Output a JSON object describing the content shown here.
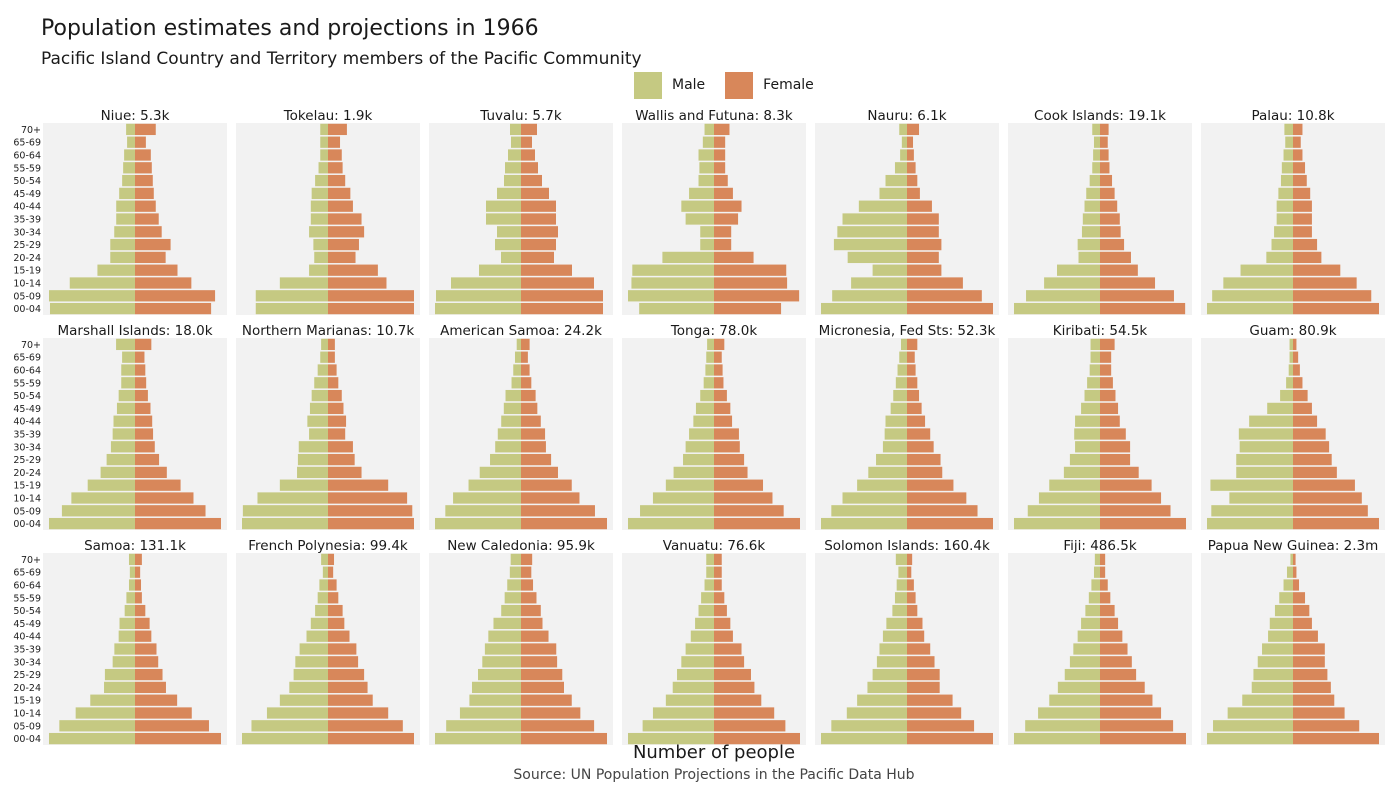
{
  "title": "Population estimates and projections in 1966",
  "subtitle": "Pacific Island Country and Territory members of the Pacific Community",
  "legend": {
    "male_label": "Male",
    "female_label": "Female"
  },
  "colors": {
    "male": "#c5c982",
    "female": "#d8875a",
    "panel_bg": "#f2f2f2"
  },
  "xlabel": "Number of people",
  "caption": "Source: UN Population Projections in the Pacific Data Hub",
  "chart_data": {
    "type": "bar",
    "orientation": "horizontal population pyramid, facets with free x scales",
    "age_groups": [
      "00-04",
      "05-09",
      "10-14",
      "15-19",
      "20-24",
      "25-29",
      "30-34",
      "35-39",
      "40-44",
      "45-49",
      "50-54",
      "55-59",
      "60-64",
      "65-69",
      "70+"
    ],
    "panels": [
      {
        "title": "Niue: 5.3k",
        "male": [
          86,
          87,
          66,
          38,
          25,
          25,
          21,
          19,
          19,
          16,
          13,
          12,
          11,
          8,
          9
        ],
        "female": [
          77,
          81,
          57,
          43,
          31,
          36,
          27,
          24,
          21,
          19,
          18,
          17,
          16,
          11,
          21
        ]
      },
      {
        "title": "Tokelau: 1.9k",
        "male": [
          84,
          84,
          56,
          22,
          16,
          17,
          22,
          20,
          20,
          19,
          15,
          11,
          9,
          9,
          9
        ],
        "female": [
          100,
          100,
          68,
          58,
          32,
          36,
          42,
          39,
          29,
          26,
          20,
          17,
          16,
          14,
          22
        ]
      },
      {
        "title": "Tuvalu: 5.7k",
        "male": [
          86,
          85,
          70,
          42,
          20,
          26,
          24,
          35,
          35,
          24,
          17,
          16,
          13,
          10,
          11
        ],
        "female": [
          82,
          82,
          73,
          51,
          33,
          35,
          37,
          35,
          35,
          28,
          21,
          17,
          14,
          11,
          16
        ]
      },
      {
        "title": "Wallis and Futuna: 8.3k",
        "male": [
          87,
          100,
          96,
          95,
          60,
          16,
          16,
          33,
          38,
          29,
          18,
          17,
          18,
          13,
          11
        ],
        "female": [
          78,
          99,
          85,
          84,
          46,
          20,
          20,
          28,
          32,
          22,
          16,
          13,
          13,
          13,
          18
        ]
      },
      {
        "title": "Nauru: 6.1k",
        "male": [
          100,
          87,
          65,
          40,
          69,
          85,
          81,
          75,
          56,
          32,
          25,
          14,
          8,
          6,
          9
        ],
        "female": [
          100,
          87,
          65,
          40,
          37,
          40,
          37,
          37,
          29,
          15,
          12,
          10,
          8,
          7,
          14
        ]
      },
      {
        "title": "Cook Islands: 19.1k",
        "male": [
          100,
          86,
          65,
          50,
          25,
          26,
          21,
          20,
          18,
          16,
          12,
          9,
          8,
          7,
          9
        ],
        "female": [
          99,
          86,
          64,
          44,
          36,
          28,
          24,
          23,
          20,
          17,
          14,
          11,
          10,
          9,
          10
        ]
      },
      {
        "title": "Palau: 10.8k",
        "male": [
          100,
          94,
          81,
          61,
          31,
          25,
          22,
          19,
          19,
          17,
          14,
          13,
          11,
          9,
          10
        ],
        "female": [
          100,
          91,
          74,
          55,
          33,
          28,
          22,
          22,
          22,
          20,
          16,
          14,
          11,
          9,
          11
        ]
      },
      {
        "title": "Marshall Islands: 18.0k",
        "male": [
          100,
          85,
          74,
          55,
          40,
          33,
          28,
          26,
          25,
          21,
          19,
          16,
          16,
          15,
          22
        ],
        "female": [
          100,
          82,
          68,
          53,
          37,
          28,
          23,
          21,
          20,
          18,
          15,
          13,
          12,
          11,
          19
        ]
      },
      {
        "title": "Northern Marianas: 10.7k",
        "male": [
          100,
          99,
          82,
          56,
          36,
          35,
          34,
          22,
          24,
          21,
          19,
          16,
          12,
          9,
          8
        ],
        "female": [
          100,
          98,
          92,
          70,
          39,
          31,
          29,
          20,
          21,
          18,
          16,
          12,
          10,
          8,
          8
        ]
      },
      {
        "title": "American Samoa: 24.2k",
        "male": [
          100,
          88,
          79,
          61,
          48,
          36,
          30,
          27,
          23,
          20,
          18,
          11,
          9,
          7,
          5
        ],
        "female": [
          100,
          86,
          68,
          59,
          43,
          35,
          29,
          28,
          23,
          19,
          17,
          12,
          10,
          8,
          10
        ]
      },
      {
        "title": "Tonga: 78.0k",
        "male": [
          100,
          86,
          71,
          56,
          47,
          36,
          33,
          29,
          24,
          21,
          16,
          12,
          10,
          9,
          8
        ],
        "female": [
          100,
          81,
          68,
          57,
          39,
          35,
          30,
          29,
          21,
          19,
          15,
          11,
          10,
          9,
          12
        ]
      },
      {
        "title": "Micronesia, Fed Sts: 52.3k",
        "male": [
          100,
          88,
          75,
          58,
          45,
          36,
          28,
          26,
          25,
          19,
          16,
          13,
          11,
          9,
          7
        ],
        "female": [
          100,
          82,
          69,
          54,
          41,
          39,
          31,
          27,
          21,
          17,
          14,
          12,
          10,
          9,
          12
        ]
      },
      {
        "title": "Kiribati: 54.5k",
        "male": [
          100,
          84,
          71,
          59,
          42,
          35,
          29,
          30,
          29,
          22,
          18,
          15,
          12,
          11,
          11
        ],
        "female": [
          100,
          82,
          71,
          60,
          45,
          35,
          35,
          30,
          23,
          21,
          18,
          15,
          13,
          13,
          17
        ]
      },
      {
        "title": "Guam: 80.9k",
        "male": [
          100,
          95,
          74,
          96,
          66,
          66,
          62,
          63,
          51,
          30,
          15,
          8,
          5,
          4,
          4
        ],
        "female": [
          100,
          87,
          80,
          72,
          51,
          45,
          42,
          38,
          28,
          22,
          17,
          11,
          8,
          6,
          4
        ]
      },
      {
        "title": "Samoa: 131.1k",
        "male": [
          100,
          88,
          69,
          52,
          36,
          35,
          26,
          24,
          19,
          18,
          12,
          10,
          7,
          6,
          7
        ],
        "female": [
          100,
          86,
          66,
          49,
          36,
          32,
          27,
          25,
          19,
          17,
          12,
          8,
          7,
          6,
          8
        ]
      },
      {
        "title": "French Polynesia: 99.4k",
        "male": [
          100,
          89,
          71,
          56,
          45,
          40,
          38,
          33,
          25,
          20,
          15,
          12,
          10,
          6,
          8
        ],
        "female": [
          100,
          87,
          70,
          52,
          46,
          42,
          35,
          33,
          25,
          19,
          17,
          12,
          10,
          6,
          7
        ]
      },
      {
        "title": "New Caledonia: 95.9k",
        "male": [
          100,
          87,
          71,
          60,
          57,
          50,
          45,
          42,
          38,
          32,
          23,
          19,
          16,
          13,
          12
        ],
        "female": [
          100,
          85,
          69,
          59,
          50,
          48,
          42,
          41,
          32,
          25,
          23,
          18,
          14,
          12,
          13
        ]
      },
      {
        "title": "Vanuatu: 76.6k",
        "male": [
          100,
          83,
          71,
          56,
          48,
          43,
          38,
          33,
          27,
          22,
          18,
          15,
          11,
          9,
          9
        ],
        "female": [
          100,
          83,
          70,
          55,
          47,
          43,
          35,
          32,
          22,
          19,
          15,
          12,
          9,
          9,
          9
        ]
      },
      {
        "title": "Solomon Islands: 160.4k",
        "male": [
          100,
          88,
          70,
          58,
          46,
          40,
          35,
          32,
          28,
          24,
          17,
          14,
          12,
          10,
          13
        ],
        "female": [
          100,
          78,
          63,
          53,
          38,
          38,
          32,
          27,
          20,
          18,
          12,
          10,
          8,
          5,
          6
        ]
      },
      {
        "title": "Fiji: 486.5k",
        "male": [
          100,
          87,
          72,
          59,
          49,
          41,
          35,
          31,
          26,
          22,
          17,
          13,
          10,
          7,
          6
        ],
        "female": [
          100,
          85,
          71,
          61,
          52,
          42,
          37,
          32,
          26,
          21,
          17,
          12,
          9,
          6,
          6
        ]
      },
      {
        "title": "Papua New Guinea: 2.3m",
        "male": [
          100,
          93,
          76,
          59,
          48,
          46,
          41,
          36,
          29,
          27,
          21,
          16,
          11,
          7,
          3
        ],
        "female": [
          100,
          77,
          60,
          48,
          44,
          40,
          37,
          37,
          29,
          22,
          19,
          14,
          7,
          4,
          3
        ]
      }
    ],
    "note": "Each panel is drawn with its own free x scale; values are relative bar lengths (0-100) read off the panels, no x tick labels are printed."
  }
}
